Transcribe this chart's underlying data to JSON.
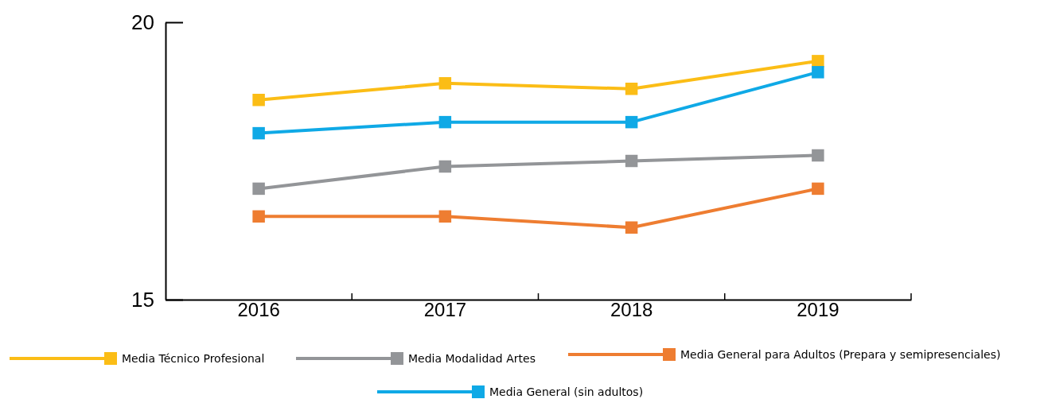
{
  "chart_data": {
    "type": "line",
    "categories": [
      "2016",
      "2017",
      "2018",
      "2019"
    ],
    "ylim": [
      15,
      20
    ],
    "yticks": [
      15,
      20
    ],
    "marker": "square",
    "legend": "bottom",
    "series": [
      {
        "name": "Media Técnico Profesional",
        "color": "#fbbd16",
        "values": [
          18.6,
          18.9,
          18.8,
          19.3
        ]
      },
      {
        "name": "Media Modalidad Artes",
        "color": "#939598",
        "values": [
          17.0,
          17.4,
          17.5,
          17.6
        ]
      },
      {
        "name": "Media General para Adultos (Prepara y semipresenciales)",
        "color": "#ee7d31",
        "values": [
          16.5,
          16.5,
          16.3,
          17.0
        ]
      },
      {
        "name": "Media General (sin adultos)",
        "color": "#0fa9e6",
        "values": [
          18.0,
          18.2,
          18.2,
          19.1
        ]
      }
    ]
  }
}
